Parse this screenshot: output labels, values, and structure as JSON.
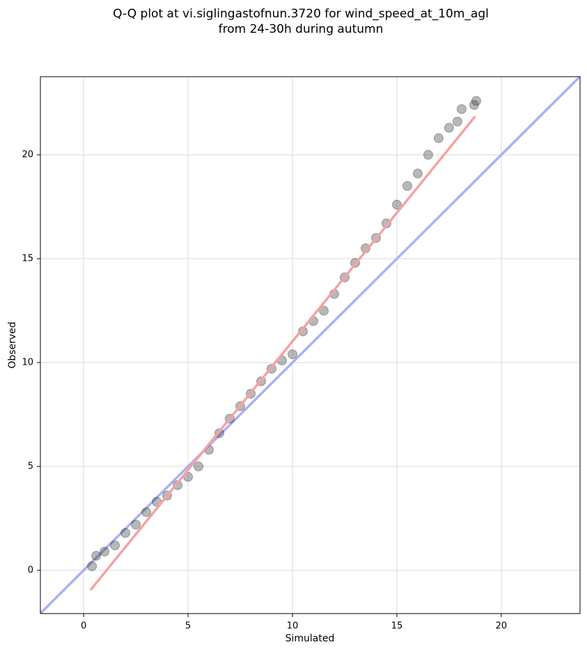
{
  "chart_data": {
    "type": "scatter",
    "title_lines": [
      "Q-Q plot at vi.siglingastofnun.3720 for wind_speed_at_10m_agl",
      "from 24-30h during autumn"
    ],
    "xlabel": "Simulated",
    "ylabel": "Observed",
    "xlim": [
      -2.07,
      23.77
    ],
    "ylim": [
      -2.08,
      23.76
    ],
    "xticks": [
      0,
      5,
      10,
      15,
      20
    ],
    "yticks": [
      0,
      5,
      10,
      15,
      20
    ],
    "grid": true,
    "color": "#333333",
    "x": [
      0.4,
      0.6,
      1,
      1.5,
      2,
      2.5,
      3,
      3.5,
      4,
      4.5,
      5,
      5.5,
      6,
      6.5,
      7,
      7.5,
      8,
      8.5,
      9,
      9.5,
      10,
      10.5,
      11,
      11.5,
      12,
      12.5,
      13,
      13.5,
      14,
      14.5,
      15,
      15.5,
      16,
      16.5,
      17,
      17.5,
      17.9,
      18.1,
      18.7,
      18.8
    ],
    "values": [
      0.2,
      0.7,
      0.9,
      1.2,
      1.8,
      2.2,
      2.8,
      3.3,
      3.6,
      4.1,
      4.5,
      5.0,
      5.8,
      6.6,
      7.3,
      7.9,
      8.5,
      9.1,
      9.7,
      10.1,
      10.4,
      11.5,
      12.0,
      12.5,
      13.3,
      14.1,
      14.8,
      15.5,
      16.0,
      16.7,
      17.6,
      18.5,
      19.1,
      20.0,
      20.8,
      21.3,
      21.6,
      22.2,
      22.4,
      22.6
    ],
    "fit_line": {
      "x": [
        0.33,
        18.75
      ],
      "y": [
        -0.95,
        21.85
      ],
      "color": "#f4a3a3"
    },
    "reference_line": {
      "x": [
        -2.07,
        23.77
      ],
      "y": [
        -2.07,
        23.77
      ],
      "color": "#aab0f5"
    }
  }
}
